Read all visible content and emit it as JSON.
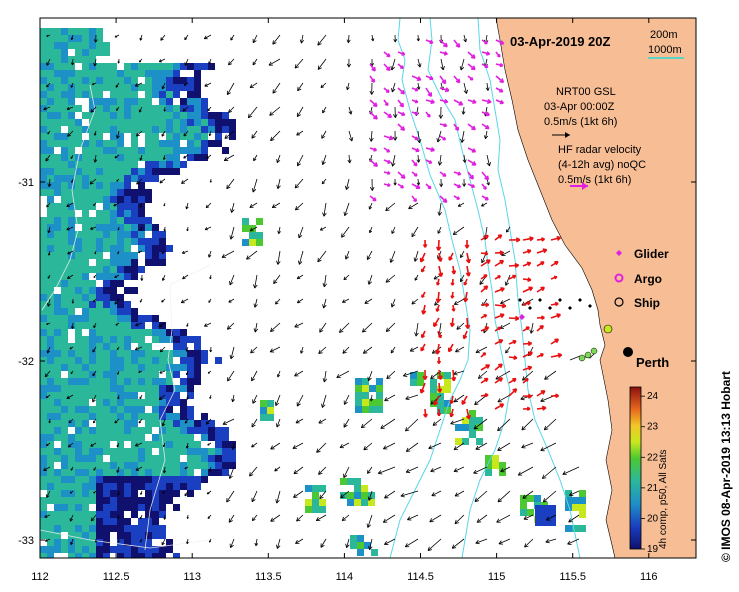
{
  "map": {
    "title": "03-Apr-2019 20Z",
    "colors": {
      "land": "#f7be96",
      "bathy": "#5ad6e8",
      "hf": "#e020e0",
      "hf_red": "#e81010",
      "gsl": "#000000",
      "contour": "#00e0e0"
    },
    "x_ticks": [
      {
        "value": 112,
        "label": "112"
      },
      {
        "value": 112.5,
        "label": "112.5"
      },
      {
        "value": 113,
        "label": "113"
      },
      {
        "value": 113.5,
        "label": "113.5"
      },
      {
        "value": 114,
        "label": "114"
      },
      {
        "value": 114.5,
        "label": "114.5"
      },
      {
        "value": 115,
        "label": "115"
      },
      {
        "value": 115.5,
        "label": "115.5"
      },
      {
        "value": 116,
        "label": "116"
      }
    ],
    "y_ticks": [
      {
        "value": -31,
        "label": "-31"
      },
      {
        "value": -32,
        "label": "-32"
      },
      {
        "value": -33,
        "label": "-33"
      }
    ],
    "lon_range": [
      112,
      116.3
    ],
    "lat_range": [
      -33.1,
      -30.2
    ]
  },
  "bathymetry_legend": {
    "line1": "200m",
    "line2": "1000m"
  },
  "gsl_info": {
    "line1": "NRT00 GSL",
    "line2": "03-Apr 00:00Z",
    "line3": "0.5m/s (1kt 6h)"
  },
  "hf_info": {
    "line1": "HF radar velocity",
    "line2": "(4-12h avg) noQC",
    "line3": "0.5m/s (1kt 6h)"
  },
  "legend": {
    "glider": {
      "label": "Glider",
      "color": "#e020e0"
    },
    "argo": {
      "label": "Argo",
      "color": "#e020e0"
    },
    "ship": {
      "label": "Ship",
      "color": "#000000"
    }
  },
  "location": {
    "label": "Perth",
    "lon": 115.86,
    "lat": -31.95
  },
  "colorbar": {
    "ticks": [
      "19",
      "20",
      "21",
      "22",
      "23",
      "24"
    ],
    "label": "4h comp, p50, All Sats",
    "min": 19,
    "max": 24.3
  },
  "credit": "© IMOS 08-Apr-2019 13:13 Hobart"
}
